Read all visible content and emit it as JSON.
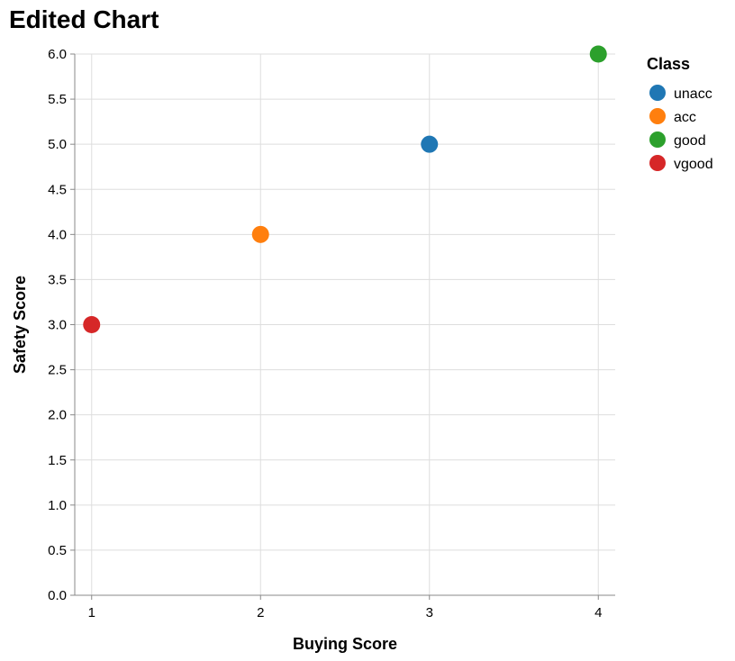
{
  "chart_data": {
    "type": "scatter",
    "title": "Edited Chart",
    "xlabel": "Buying Score",
    "ylabel": "Safety Score",
    "xlim": [
      0.9,
      4.1
    ],
    "ylim": [
      0,
      6
    ],
    "x_ticks": [
      "1",
      "2",
      "3",
      "4"
    ],
    "y_ticks": [
      "0.0",
      "0.5",
      "1.0",
      "1.5",
      "2.0",
      "2.5",
      "3.0",
      "3.5",
      "4.0",
      "4.5",
      "5.0",
      "5.5",
      "6.0"
    ],
    "grid": true,
    "legend_title": "Class",
    "legend_position": "top-right",
    "series": [
      {
        "name": "unacc",
        "color": "#1f77b4",
        "points": [
          {
            "x": 3,
            "y": 5
          }
        ]
      },
      {
        "name": "acc",
        "color": "#ff7f0e",
        "points": [
          {
            "x": 2,
            "y": 4
          }
        ]
      },
      {
        "name": "good",
        "color": "#2ca02c",
        "points": [
          {
            "x": 4,
            "y": 6
          }
        ]
      },
      {
        "name": "vgood",
        "color": "#d62728",
        "points": [
          {
            "x": 1,
            "y": 3
          }
        ]
      }
    ]
  }
}
